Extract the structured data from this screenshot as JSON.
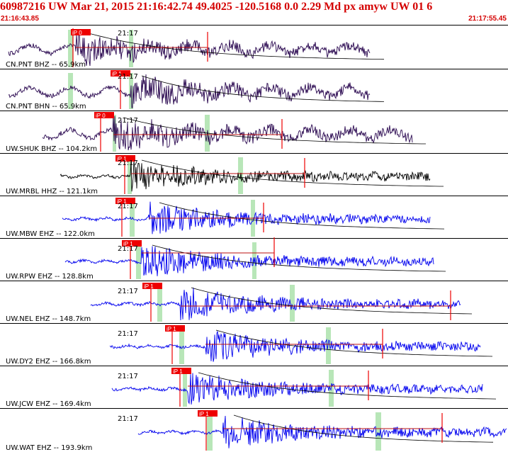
{
  "header": {
    "title": "60987216 UW Mar 21, 2015 21:16:42.74    49.4025 -120.5168  0.0 2.29 Md px amyw UW 01    6",
    "start_time": "21:16:43.85",
    "end_time": "21:17:55.45"
  },
  "colors": {
    "header_text": "#d40000",
    "pick_red": "#ee0000",
    "pick_window_green": "#b8e6b8",
    "trace_purple": "#2a0850",
    "trace_black": "#000000",
    "trace_blue": "#0000ee",
    "amplitude_line": "#bb1111",
    "separator": "#000000"
  },
  "traces": [
    {
      "label": "CN.PNT BHZ -- 65.9km",
      "time_mark": "21:17",
      "pick_label": "iP 0",
      "color": "purple"
    },
    {
      "label": "CN.PNT BHN -- 65.9km",
      "time_mark": "21:17",
      "pick_label": "iP 1",
      "color": "purple"
    },
    {
      "label": "UW.SHUK BHZ -- 104.2km",
      "time_mark": "21:17",
      "pick_label": "iP 0",
      "color": "purple"
    },
    {
      "label": "UW.MRBL HHZ -- 121.1km",
      "time_mark": "21:17",
      "pick_label": "iP 1",
      "color": "black"
    },
    {
      "label": "UW.MBW EHZ -- 122.0km",
      "time_mark": "21:17",
      "pick_label": "iP 1",
      "color": "blue"
    },
    {
      "label": "UW.RPW EHZ -- 128.8km",
      "time_mark": "21:17",
      "pick_label": "iP 1",
      "color": "blue"
    },
    {
      "label": "UW.NEL EHZ -- 148.7km",
      "time_mark": "21:17",
      "pick_label": "iP 1",
      "color": "blue"
    },
    {
      "label": "UW.DY2 EHZ -- 166.8km",
      "time_mark": "21:17",
      "pick_label": "iP 1",
      "color": "blue"
    },
    {
      "label": "UW.JCW EHZ -- 169.4km",
      "time_mark": "21:17",
      "pick_label": "iP 1",
      "color": "blue"
    },
    {
      "label": "UW.WAT EHZ -- 193.9km",
      "time_mark": "21:17",
      "pick_label": "iP 1",
      "color": "blue"
    }
  ]
}
